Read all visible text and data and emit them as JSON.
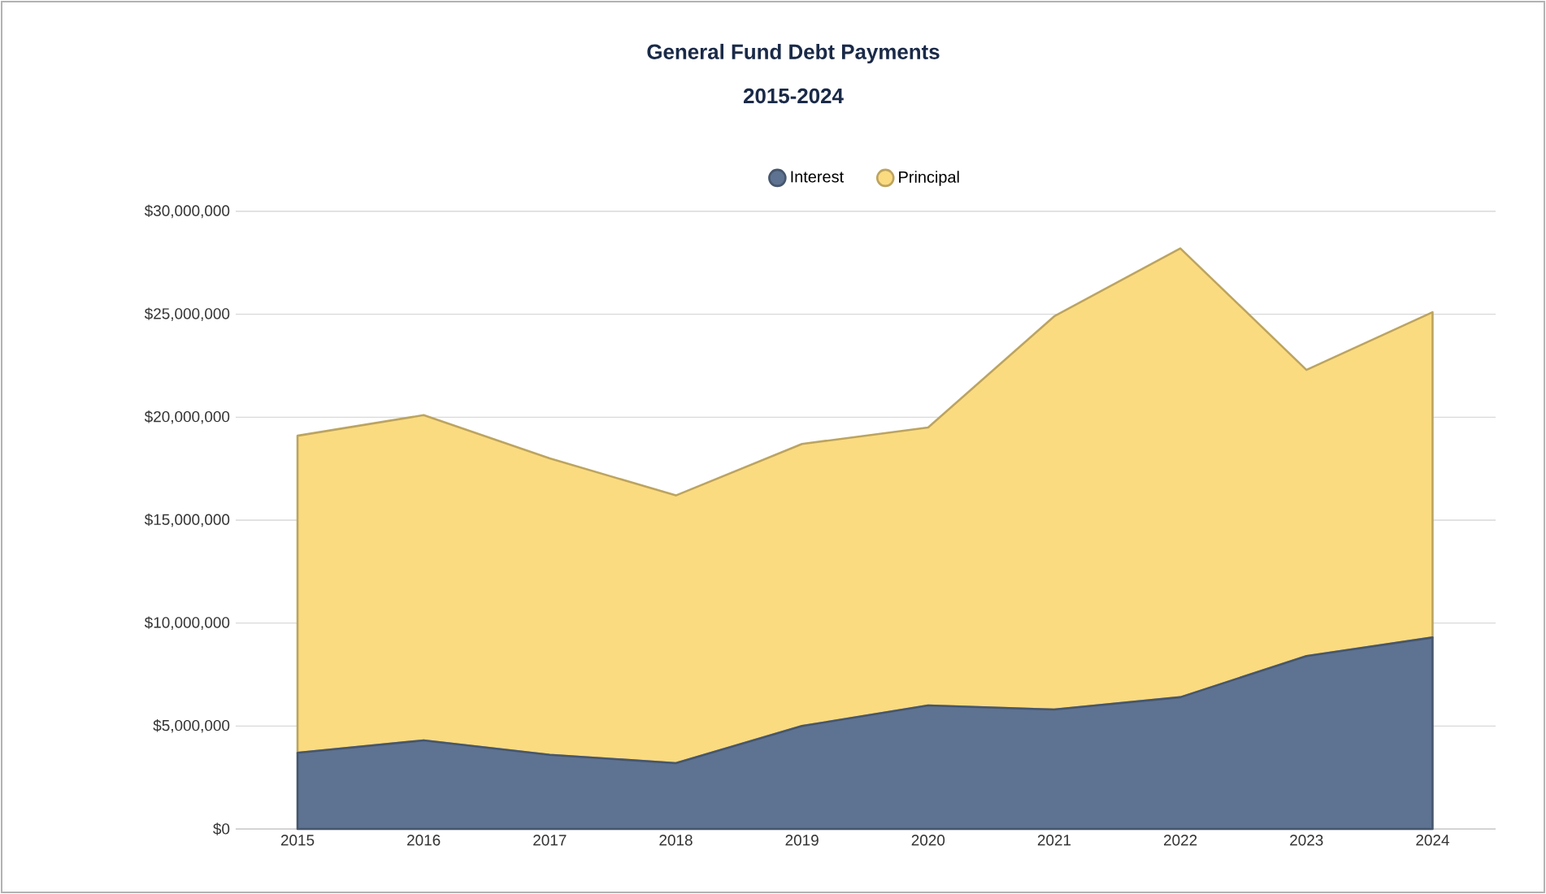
{
  "chart_data": {
    "type": "area",
    "title": "General Fund Debt Payments",
    "subtitle": "2015-2024",
    "stacked": true,
    "legend": "top",
    "grid": "y",
    "categories": [
      "2015",
      "2016",
      "2017",
      "2018",
      "2019",
      "2020",
      "2021",
      "2022",
      "2023",
      "2024"
    ],
    "ylim": [
      0,
      30000000
    ],
    "yticks": [
      {
        "value": 0,
        "label": "$0"
      },
      {
        "value": 5000000,
        "label": "$5,000,000"
      },
      {
        "value": 10000000,
        "label": "$10,000,000"
      },
      {
        "value": 15000000,
        "label": "$15,000,000"
      },
      {
        "value": 20000000,
        "label": "$20,000,000"
      },
      {
        "value": 25000000,
        "label": "$25,000,000"
      },
      {
        "value": 30000000,
        "label": "$30,000,000"
      }
    ],
    "series": [
      {
        "name": "Interest",
        "color": "#5e7291",
        "values": [
          3700000,
          4300000,
          3600000,
          3200000,
          5000000,
          6000000,
          5800000,
          6400000,
          8400000,
          9300000
        ]
      },
      {
        "name": "Principal",
        "color": "#fbdb80",
        "values": [
          15400000,
          15800000,
          14400000,
          13000000,
          13700000,
          13500000,
          19100000,
          21800000,
          13900000,
          15800000
        ]
      }
    ]
  }
}
